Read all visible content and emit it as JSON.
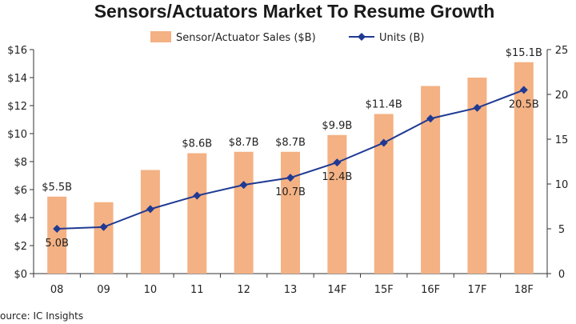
{
  "chart_data": {
    "type": "bar+line",
    "title": "Sensors/Actuators Market To Resume Growth",
    "categories": [
      "08",
      "09",
      "10",
      "11",
      "12",
      "13",
      "14F",
      "15F",
      "16F",
      "17F",
      "18F"
    ],
    "series": [
      {
        "name": "Sensor/Actuator Sales ($B)",
        "type": "bar",
        "axis": "left",
        "color": "#f4b183",
        "values": [
          5.5,
          5.1,
          7.4,
          8.6,
          8.7,
          8.7,
          9.9,
          11.4,
          13.4,
          14.0,
          15.1
        ],
        "labels": [
          "$5.5B",
          "",
          "",
          "$8.6B",
          "$8.7B",
          "$8.7B",
          "$9.9B",
          "$11.4B",
          "",
          "",
          "$15.1B"
        ]
      },
      {
        "name": "Units (B)",
        "type": "line",
        "axis": "right",
        "color": "#1f3a93",
        "values": [
          5.0,
          5.2,
          7.2,
          8.7,
          9.9,
          10.7,
          12.4,
          14.6,
          17.3,
          18.5,
          20.5
        ],
        "labels": [
          "5.0B",
          "",
          "",
          "",
          "",
          "10.7B",
          "12.4B",
          "",
          "",
          "",
          "20.5B"
        ]
      }
    ],
    "y_left": {
      "min": 0,
      "max": 16,
      "ticks": [
        0,
        2,
        4,
        6,
        8,
        10,
        12,
        14,
        16
      ],
      "tick_labels": [
        "$0",
        "$2",
        "$4",
        "$6",
        "$8",
        "$10",
        "$12",
        "$14",
        "$16"
      ]
    },
    "y_right": {
      "min": 0,
      "max": 25,
      "ticks": [
        0,
        5,
        10,
        15,
        20,
        25
      ],
      "tick_labels": [
        "0",
        "5",
        "10",
        "15",
        "20",
        "25"
      ]
    },
    "legend": [
      "Sensor/Actuator Sales ($B)",
      "Units (B)"
    ],
    "source": "ource: IC Insights"
  }
}
